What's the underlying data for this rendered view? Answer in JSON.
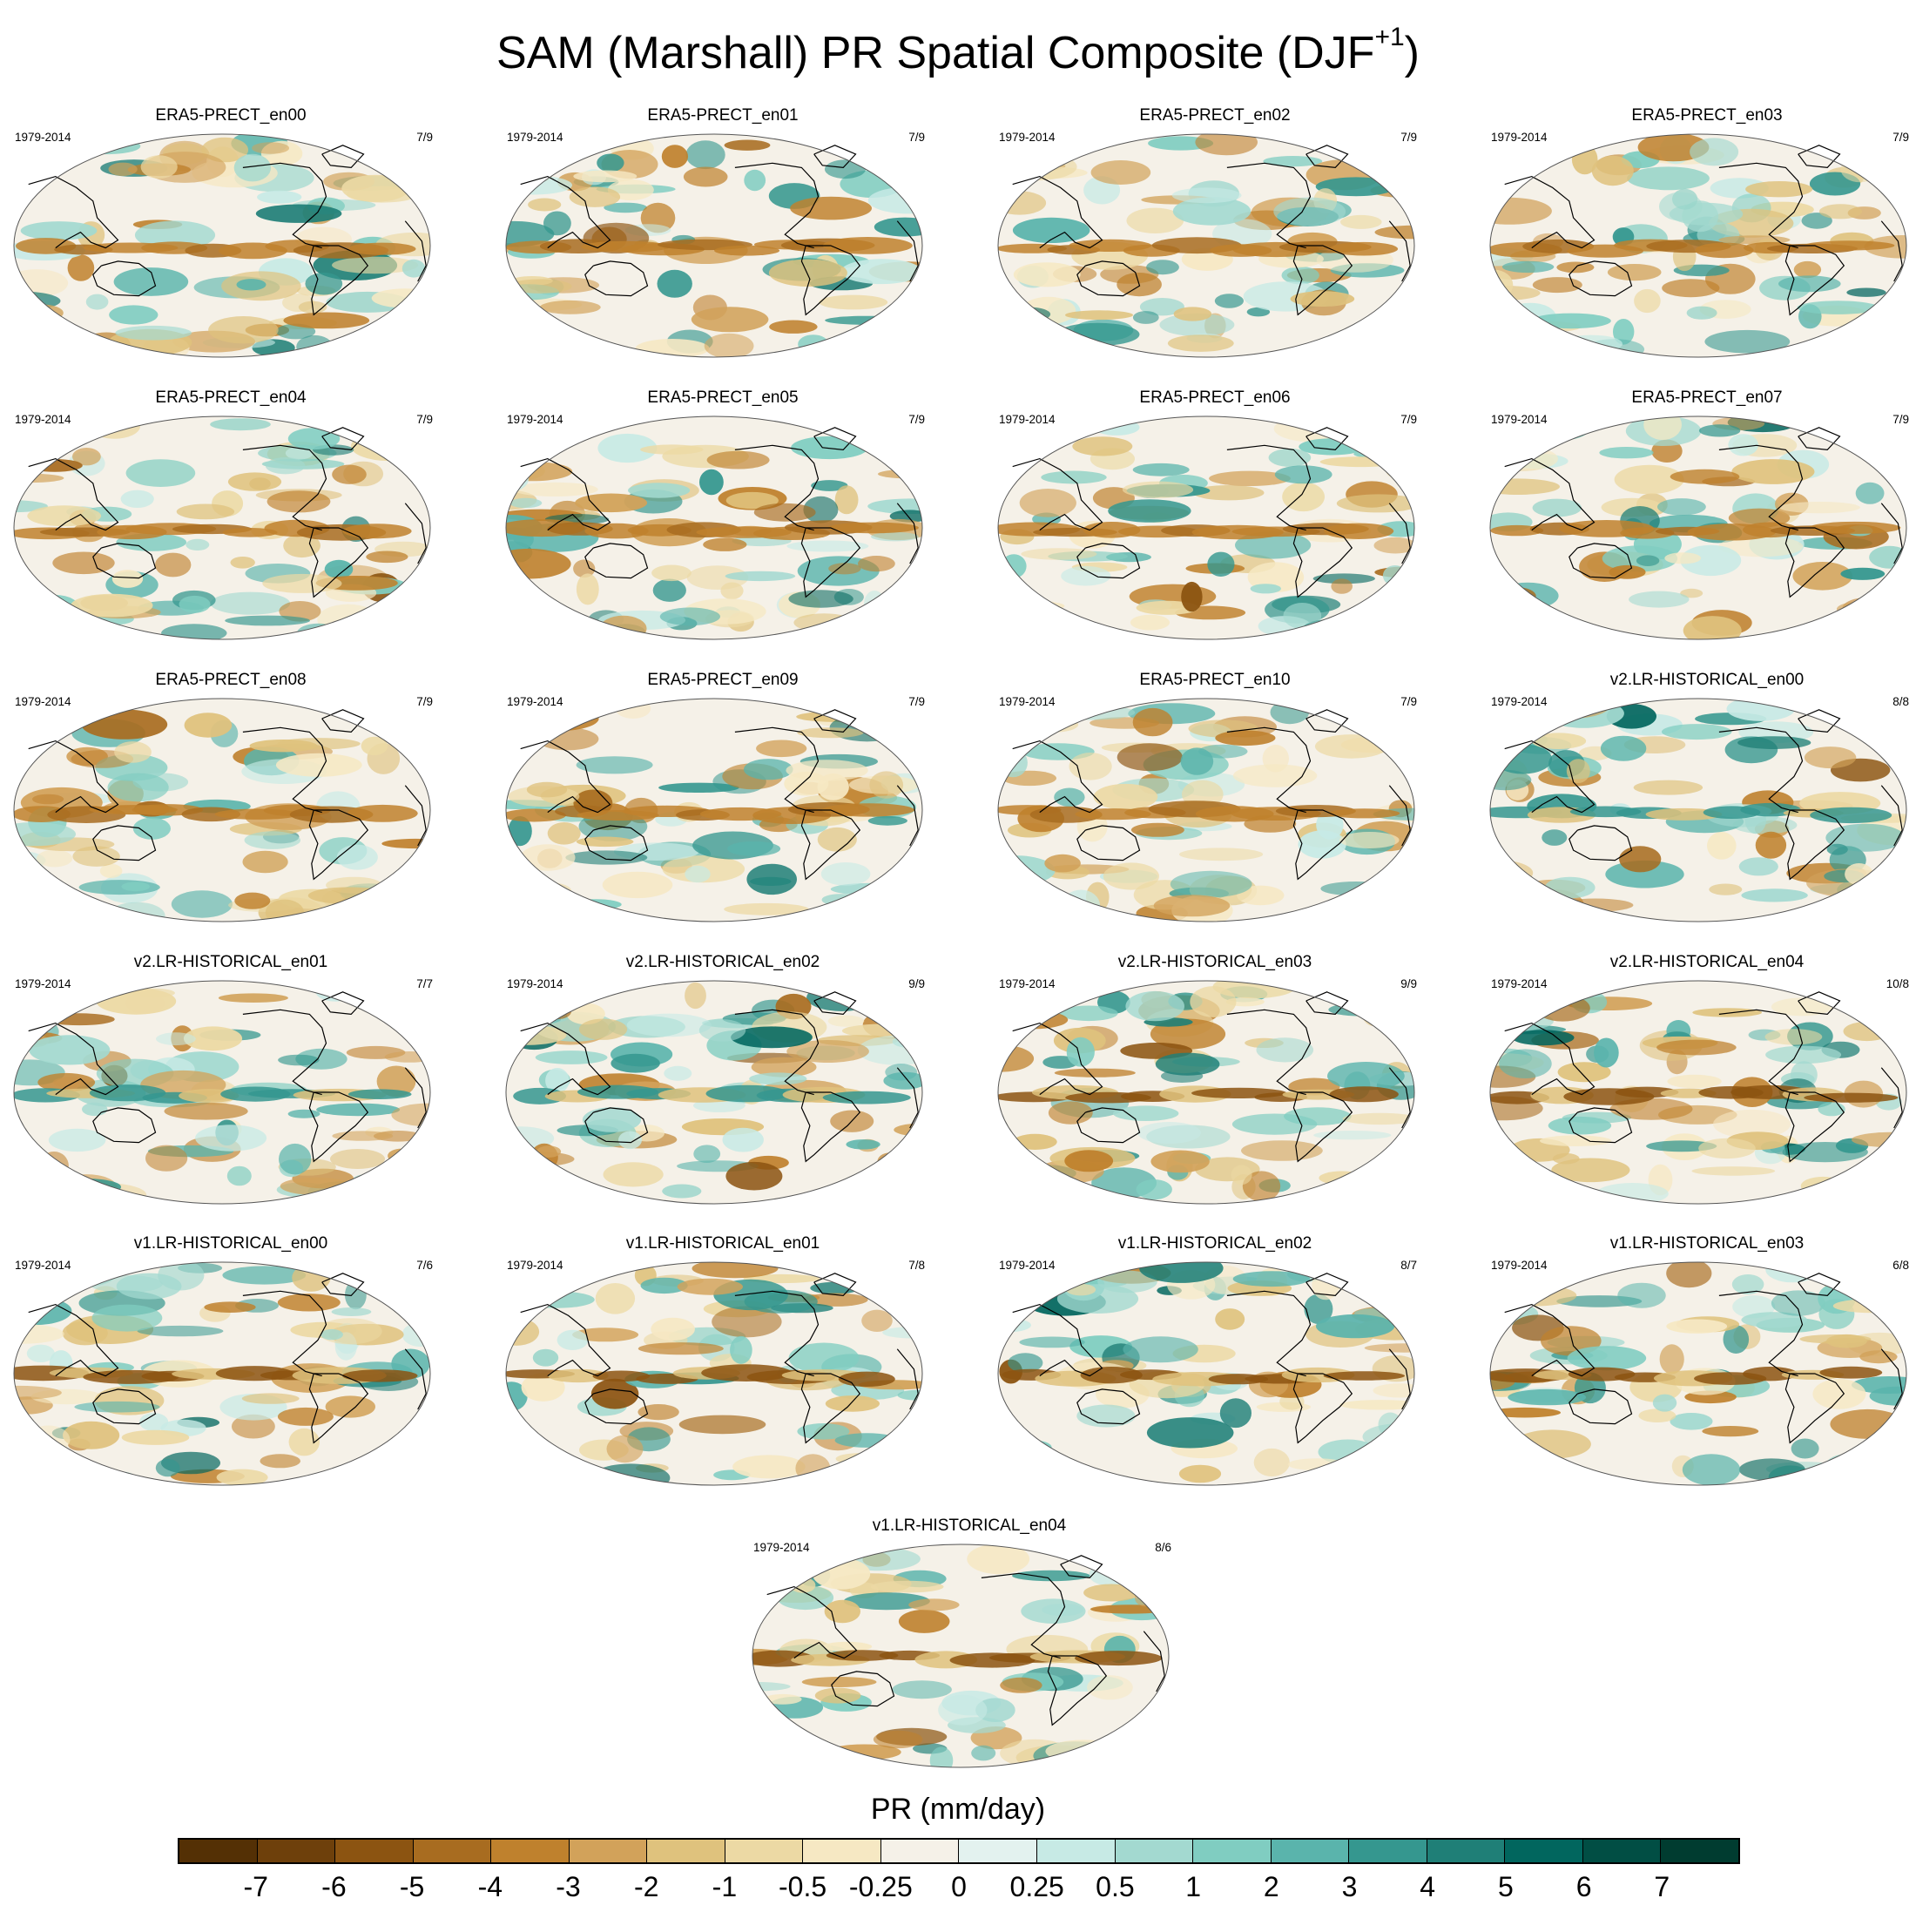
{
  "figure": {
    "title_main": "SAM (Marshall) PR Spatial Composite (DJF",
    "title_sup": "+1",
    "title_close": ")"
  },
  "chart_data": {
    "type": "heatmap",
    "projection": "Robinson (Pacific-centered)",
    "layout": {
      "columns": 4,
      "rows": 6,
      "last_row": "centered single panel"
    },
    "panels": [
      {
        "title": "ERA5-PRECT_en00",
        "period": "1979-2014",
        "count": "7/9"
      },
      {
        "title": "ERA5-PRECT_en01",
        "period": "1979-2014",
        "count": "7/9"
      },
      {
        "title": "ERA5-PRECT_en02",
        "period": "1979-2014",
        "count": "7/9"
      },
      {
        "title": "ERA5-PRECT_en03",
        "period": "1979-2014",
        "count": "7/9"
      },
      {
        "title": "ERA5-PRECT_en04",
        "period": "1979-2014",
        "count": "7/9"
      },
      {
        "title": "ERA5-PRECT_en05",
        "period": "1979-2014",
        "count": "7/9"
      },
      {
        "title": "ERA5-PRECT_en06",
        "period": "1979-2014",
        "count": "7/9"
      },
      {
        "title": "ERA5-PRECT_en07",
        "period": "1979-2014",
        "count": "7/9"
      },
      {
        "title": "ERA5-PRECT_en08",
        "period": "1979-2014",
        "count": "7/9"
      },
      {
        "title": "ERA5-PRECT_en09",
        "period": "1979-2014",
        "count": "7/9"
      },
      {
        "title": "ERA5-PRECT_en10",
        "period": "1979-2014",
        "count": "7/9"
      },
      {
        "title": "v2.LR-HISTORICAL_en00",
        "period": "1979-2014",
        "count": "8/8"
      },
      {
        "title": "v2.LR-HISTORICAL_en01",
        "period": "1979-2014",
        "count": "7/7"
      },
      {
        "title": "v2.LR-HISTORICAL_en02",
        "period": "1979-2014",
        "count": "9/9"
      },
      {
        "title": "v2.LR-HISTORICAL_en03",
        "period": "1979-2014",
        "count": "9/9"
      },
      {
        "title": "v2.LR-HISTORICAL_en04",
        "period": "1979-2014",
        "count": "10/8"
      },
      {
        "title": "v1.LR-HISTORICAL_en00",
        "period": "1979-2014",
        "count": "7/6"
      },
      {
        "title": "v1.LR-HISTORICAL_en01",
        "period": "1979-2014",
        "count": "7/8"
      },
      {
        "title": "v1.LR-HISTORICAL_en02",
        "period": "1979-2014",
        "count": "8/7"
      },
      {
        "title": "v1.LR-HISTORICAL_en03",
        "period": "1979-2014",
        "count": "6/8"
      },
      {
        "title": "v1.LR-HISTORICAL_en04",
        "period": "1979-2014",
        "count": "8/6"
      }
    ],
    "colorbar": {
      "title": "PR (mm/day)",
      "levels": [
        "-7",
        "-6",
        "-5",
        "-4",
        "-3",
        "-2",
        "-1",
        "-0.5",
        "-0.25",
        "0",
        "0.25",
        "0.5",
        "1",
        "2",
        "3",
        "4",
        "5",
        "6",
        "7"
      ],
      "colors": [
        "#543005",
        "#6e400b",
        "#8c5411",
        "#a86c20",
        "#bf812d",
        "#d2a25a",
        "#dfc27d",
        "#ecd9a4",
        "#f6e8c3",
        "#f5f1e8",
        "#e3f2ef",
        "#c7eae5",
        "#a3d9d0",
        "#80cdc1",
        "#5ab4ac",
        "#35978f",
        "#1f7f77",
        "#01665e",
        "#014e44",
        "#003c30"
      ]
    },
    "colors": {
      "land_outline": "#000000",
      "map_border": "#555555"
    }
  }
}
